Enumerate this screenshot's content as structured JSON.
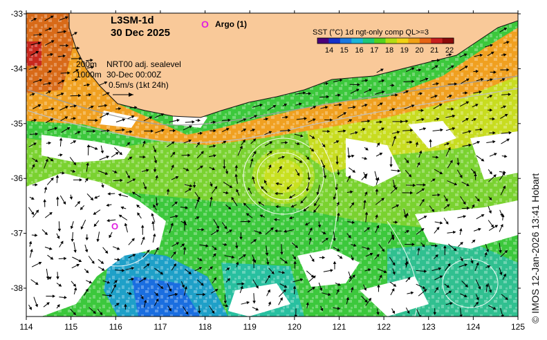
{
  "product": "L3SM-1d",
  "date": "30 Dec 2025",
  "argo": {
    "marker": "O",
    "label": "Argo (1)"
  },
  "info": {
    "line1_depth": "200m",
    "line1_text": "NRT00 adj. sealevel",
    "line2_depth": "1000m",
    "line2_text": "30-Dec 00:00Z",
    "scale": "0.5m/s (1kt 24h)"
  },
  "colorbar": {
    "title": "SST (°C) 1d ngt-only comp QL>=3",
    "ticks": [
      "14",
      "15",
      "16",
      "17",
      "18",
      "19",
      "20",
      "21",
      "22"
    ],
    "colors": [
      "#4b007a",
      "#1530c8",
      "#1a78e0",
      "#19b4d8",
      "#1ec878",
      "#52d21e",
      "#b4dc14",
      "#f0d214",
      "#f0a014",
      "#e66414",
      "#c81e1e",
      "#8c0a0a"
    ]
  },
  "axes": {
    "x_ticks": [
      "114",
      "115",
      "116",
      "117",
      "118",
      "119",
      "120",
      "121",
      "122",
      "123",
      "124",
      "125"
    ],
    "y_ticks": [
      "-33",
      "-34",
      "-35",
      "-36",
      "-37",
      "-38"
    ]
  },
  "credit": "© IMOS 12-Jan-2026 13:41 Hobart",
  "colors": {
    "land": "#f9c999",
    "argo": "#e020e0",
    "coast": "#111111"
  }
}
